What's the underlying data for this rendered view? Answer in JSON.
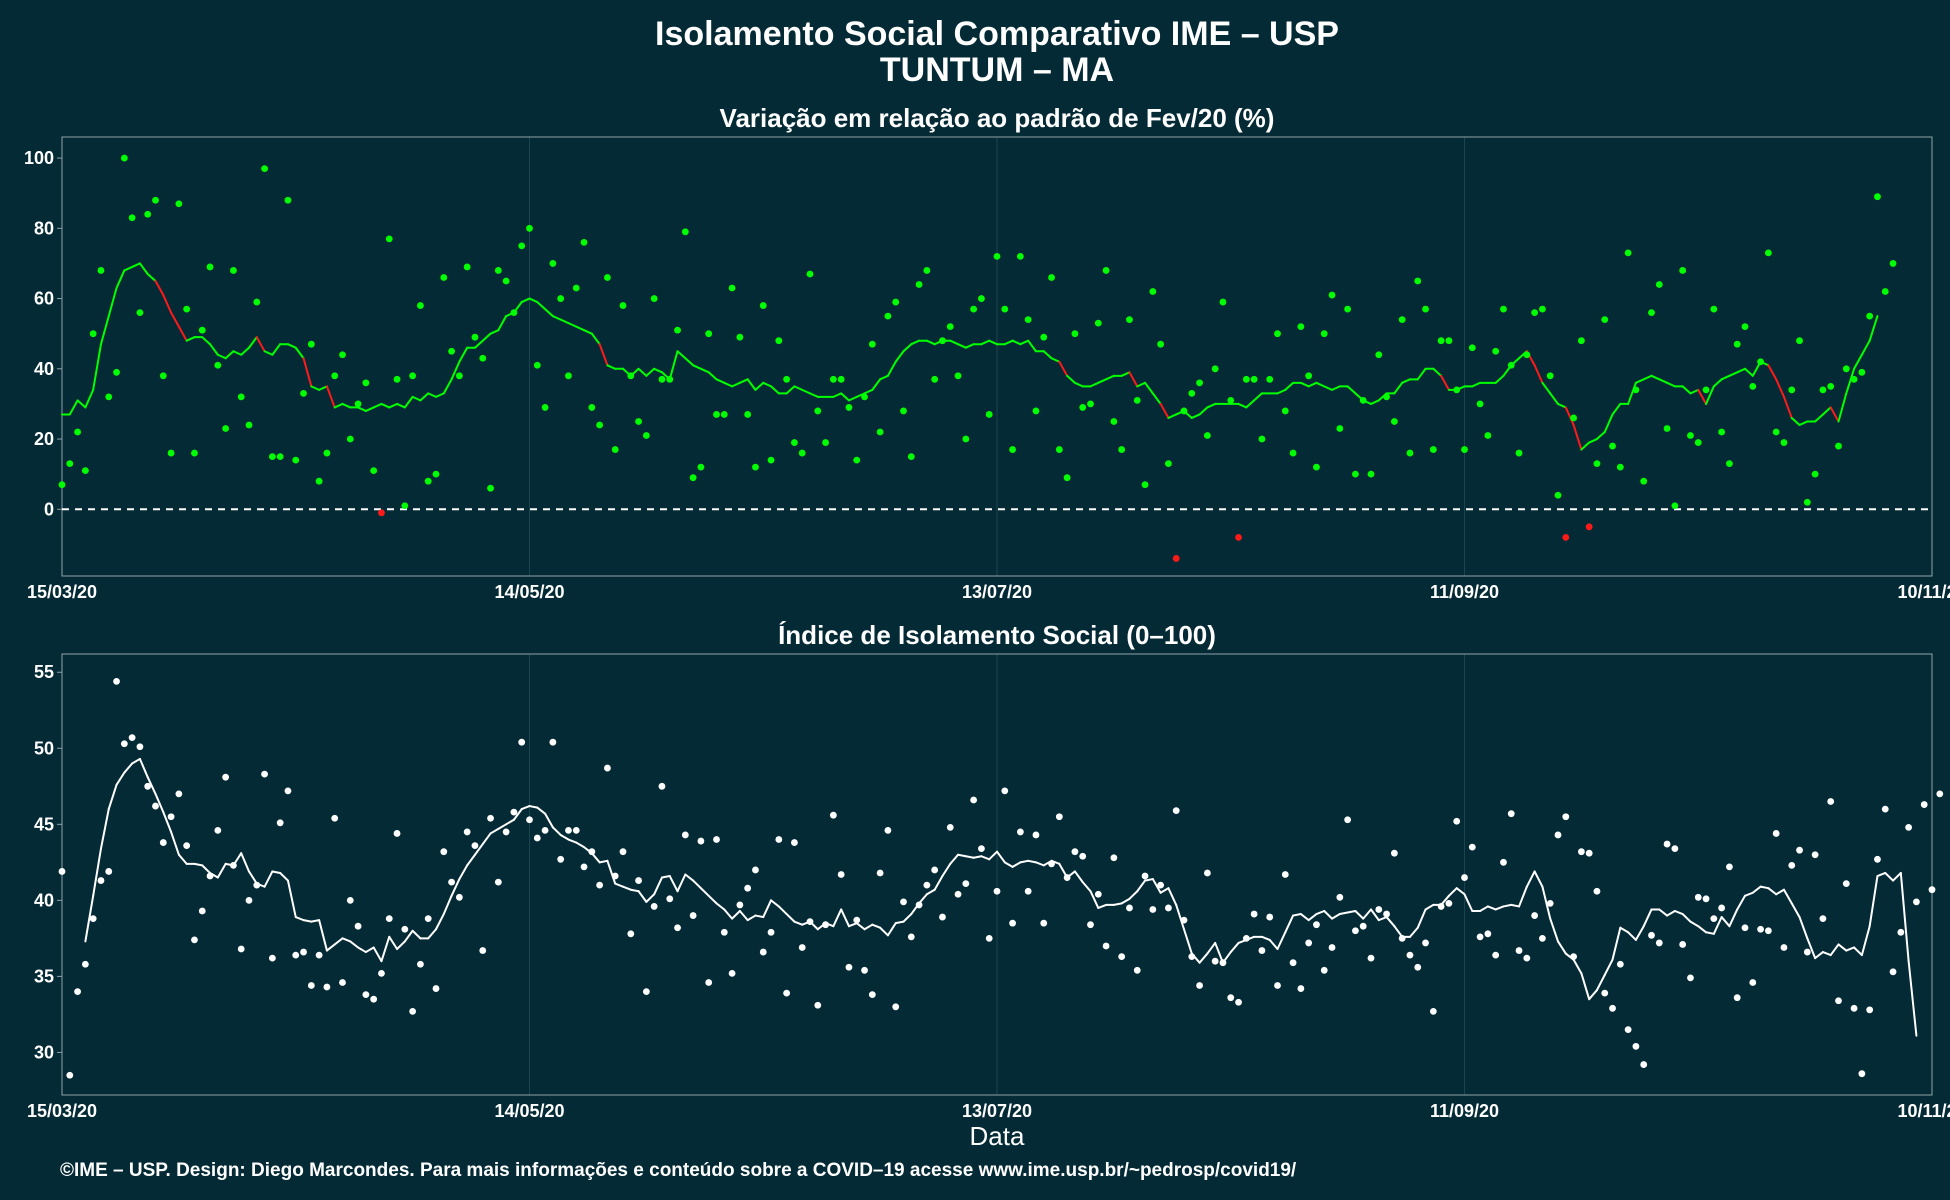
{
  "title": "Isolamento Social Comparativo IME – USP",
  "subtitle": "TUNTUM – MA",
  "caption": "©IME – USP. Design: Diego Marcondes. Para mais informações e conteúdo sobre a COVID–19 acesse www.ime.usp.br/~pedrosp/covid19/",
  "colors": {
    "background": "#042a35",
    "panel_border": "#8fa3a8",
    "grid": "#1c4450",
    "positive": "#00ff00",
    "negative": "#ff1a1a",
    "index_points": "#ffffff",
    "zero_line": "#ffffff"
  },
  "chart_data": [
    {
      "type": "scatter",
      "title": "Variação em relação ao padrão de Fev/20 (%)",
      "xlabel": "",
      "ylabel": "",
      "x_start": "15/03/20",
      "x_ticks": [
        "15/03/20",
        "14/05/20",
        "13/07/20",
        "11/09/20",
        "10/11/20"
      ],
      "x_tick_days": [
        0,
        60,
        120,
        180,
        240
      ],
      "xlim_days": [
        0,
        240
      ],
      "ylim": [
        -19,
        106
      ],
      "y_ticks": [
        0,
        20,
        40,
        60,
        80,
        100
      ],
      "reference_line": 0,
      "grid": true,
      "series": [
        {
          "kind": "daily_points",
          "values": [
            7,
            13,
            22,
            11,
            50,
            68,
            32,
            39,
            100,
            83,
            56,
            84,
            88,
            38,
            16,
            87,
            57,
            16,
            51,
            69,
            41,
            23,
            68,
            32,
            24,
            59,
            97,
            15,
            15,
            88,
            14,
            33,
            47,
            8,
            16,
            38,
            44,
            20,
            30,
            36,
            11,
            -1,
            77,
            37,
            1,
            38,
            58,
            8,
            10,
            66,
            45,
            38,
            69,
            49,
            43,
            6,
            68,
            65,
            56,
            75,
            80,
            41,
            29,
            70,
            60,
            38,
            63,
            76,
            29,
            24,
            66,
            17,
            58,
            38,
            25,
            21,
            60,
            37,
            37,
            51,
            79,
            9,
            12,
            50,
            27,
            27,
            63,
            49,
            27,
            12,
            58,
            14,
            48,
            37,
            19,
            16,
            67,
            28,
            19,
            37,
            37,
            29,
            14,
            32,
            47,
            22,
            55,
            59,
            28,
            15,
            64,
            68,
            37,
            48,
            52,
            38,
            20,
            57,
            60,
            27,
            72,
            57,
            17,
            72,
            54,
            28,
            49,
            66,
            17,
            9,
            50,
            29,
            30,
            53,
            68,
            25,
            17,
            54,
            31,
            7,
            62,
            47,
            13,
            -14,
            28,
            33,
            36,
            21,
            40,
            59,
            31,
            -8,
            37,
            37,
            20,
            37,
            50,
            28,
            16,
            52,
            38,
            12,
            50,
            61,
            23,
            57,
            10,
            31,
            10,
            44,
            32,
            25,
            54,
            16,
            65,
            57,
            17,
            48,
            48,
            34,
            17,
            46,
            30,
            21,
            45,
            57,
            41,
            16,
            44,
            56,
            57,
            38,
            4,
            -8,
            26,
            48,
            -5,
            13,
            54,
            18,
            12,
            73,
            34,
            8,
            56,
            64,
            23,
            1,
            68,
            21,
            19,
            34,
            57,
            22,
            13,
            47,
            52,
            35,
            42,
            73,
            22,
            19,
            34,
            48,
            2,
            10,
            34,
            35,
            18,
            40,
            37,
            39,
            55,
            89,
            62,
            70
          ]
        },
        {
          "kind": "moving_average",
          "values": [
            27,
            27,
            31,
            29,
            34,
            47,
            55,
            63,
            68,
            69,
            70,
            67,
            65,
            61,
            56,
            52,
            48,
            49,
            49,
            47,
            44,
            43,
            45,
            44,
            46,
            49,
            45,
            44,
            47,
            47,
            46,
            43,
            35,
            34,
            35,
            29,
            30,
            29,
            29,
            28,
            29,
            30,
            29,
            30,
            29,
            32,
            31,
            33,
            32,
            33,
            37,
            42,
            46,
            46,
            48,
            50,
            51,
            55,
            56,
            59,
            60,
            59,
            57,
            55,
            54,
            53,
            52,
            51,
            50,
            47,
            41,
            40,
            40,
            38,
            40,
            38,
            40,
            39,
            37,
            45,
            43,
            41,
            40,
            39,
            37,
            36,
            35,
            36,
            37,
            34,
            36,
            35,
            33,
            33,
            35,
            34,
            33,
            32,
            32,
            32,
            33,
            31,
            32,
            33,
            34,
            37,
            38,
            42,
            45,
            47,
            48,
            48,
            47,
            48,
            48,
            47,
            46,
            47,
            47,
            48,
            47,
            47,
            48,
            47,
            48,
            45,
            45,
            43,
            42,
            38,
            36,
            35,
            35,
            36,
            37,
            38,
            38,
            39,
            35,
            36,
            33,
            30,
            26,
            27,
            28,
            26,
            27,
            29,
            30,
            30,
            30,
            30,
            29,
            31,
            33,
            33,
            33,
            34,
            36,
            36,
            35,
            36,
            35,
            34,
            35,
            35,
            33,
            31,
            30,
            31,
            33,
            33,
            36,
            37,
            37,
            40,
            40,
            38,
            34,
            34,
            35,
            35,
            36,
            36,
            36,
            38,
            41,
            43,
            45,
            41,
            36,
            33,
            30,
            29,
            24,
            17,
            19,
            20,
            22,
            27,
            30,
            30,
            36,
            37,
            38,
            37,
            36,
            35,
            35,
            33,
            34,
            30,
            35,
            37,
            38,
            39,
            40,
            38,
            42,
            41,
            37,
            32,
            26,
            24,
            25,
            25,
            27,
            29,
            25,
            33,
            40,
            44,
            48,
            55
          ]
        }
      ]
    },
    {
      "type": "scatter",
      "title": "Índice de Isolamento Social (0–100)",
      "xlabel": "Data",
      "ylabel": "",
      "x_start": "15/03/20",
      "x_ticks": [
        "15/03/20",
        "14/05/20",
        "13/07/20",
        "11/09/20",
        "10/11/20"
      ],
      "x_tick_days": [
        0,
        60,
        120,
        180,
        240
      ],
      "xlim_days": [
        0,
        240
      ],
      "ylim": [
        27.2,
        56.2
      ],
      "y_ticks": [
        30,
        35,
        40,
        45,
        50,
        55
      ],
      "grid": true,
      "series": [
        {
          "kind": "daily_points",
          "values": [
            41.9,
            28.5,
            34.0,
            35.8,
            38.8,
            41.3,
            41.9,
            54.4,
            50.3,
            50.7,
            50.1,
            47.5,
            46.2,
            43.8,
            45.5,
            47.0,
            43.6,
            37.4,
            39.3,
            41.6,
            44.6,
            48.1,
            42.3,
            36.8,
            40.0,
            41.0,
            48.3,
            36.2,
            45.1,
            47.2,
            36.4,
            36.6,
            34.4,
            36.4,
            34.3,
            45.4,
            34.6,
            40.0,
            38.3,
            33.8,
            33.5,
            35.2,
            38.8,
            44.4,
            38.1,
            32.7,
            35.8,
            38.8,
            34.2,
            43.2,
            41.2,
            40.2,
            44.5,
            43.6,
            36.7,
            45.4,
            41.2,
            44.5,
            45.8,
            50.4,
            45.3,
            44.1,
            44.6,
            50.4,
            42.7,
            44.6,
            44.6,
            42.2,
            43.2,
            41.0,
            48.7,
            41.6,
            43.2,
            37.8,
            41.3,
            34.0,
            39.6,
            47.5,
            40.1,
            38.2,
            44.3,
            39.0,
            43.9,
            34.6,
            44.0,
            37.9,
            35.2,
            39.7,
            40.8,
            42.0,
            36.6,
            37.9,
            44.0,
            33.9,
            43.8,
            36.9,
            38.6,
            33.1,
            38.4,
            45.6,
            41.7,
            35.6,
            38.7,
            35.4,
            33.8,
            41.8,
            44.6,
            33.0,
            39.9,
            37.6,
            39.7,
            41.0,
            42.0,
            38.9,
            44.8,
            40.4,
            41.1,
            46.6,
            43.4,
            37.5,
            40.6,
            47.2,
            38.5,
            44.5,
            40.6,
            44.3,
            38.5,
            42.4,
            45.5,
            41.5,
            43.2,
            42.9,
            38.4,
            40.4,
            37.0,
            42.8,
            36.3,
            39.5,
            35.4,
            41.6,
            39.4,
            41.0,
            39.5,
            45.9,
            38.7,
            36.3,
            34.4,
            41.8,
            36.0,
            35.9,
            33.6,
            33.3,
            37.5,
            39.1,
            36.7,
            38.9,
            34.4,
            41.7,
            35.9,
            34.2,
            37.2,
            38.4,
            35.4,
            36.9,
            40.2,
            45.3,
            38.0,
            38.3,
            36.2,
            39.4,
            39.1,
            43.1,
            37.5,
            36.4,
            35.6,
            37.2,
            32.7,
            39.6,
            39.8,
            45.2,
            41.5,
            43.5,
            37.6,
            37.8,
            36.4,
            42.5,
            45.7,
            36.7,
            36.2,
            39.0,
            37.5,
            39.8,
            44.3,
            45.5,
            36.3,
            43.2,
            43.1,
            40.6,
            33.9,
            32.9,
            35.8,
            31.5,
            30.4,
            29.2,
            37.7,
            37.2,
            43.7,
            43.4,
            37.1,
            34.9,
            40.2,
            40.1,
            38.8,
            39.5,
            42.2,
            33.6,
            38.2,
            34.6,
            38.1,
            38.0,
            44.4,
            36.9,
            42.3,
            43.3,
            36.6,
            43.0,
            38.8,
            46.5,
            33.4,
            41.1,
            32.9,
            28.6,
            32.8,
            42.7,
            46.0,
            35.3,
            37.9,
            44.8,
            39.9,
            46.3,
            40.7,
            47.0
          ]
        },
        {
          "kind": "moving_average",
          "values": [
            null,
            null,
            null,
            37.3,
            40.3,
            43.4,
            46.0,
            47.6,
            48.4,
            49.0,
            49.3,
            48.1,
            47.0,
            45.8,
            44.5,
            43.0,
            42.4,
            42.4,
            42.3,
            41.8,
            41.5,
            42.4,
            42.3,
            43.1,
            41.9,
            41.1,
            40.9,
            41.9,
            41.8,
            41.3,
            38.9,
            38.7,
            38.6,
            38.7,
            36.7,
            37.1,
            37.5,
            37.3,
            36.9,
            36.6,
            36.9,
            36.0,
            37.6,
            36.8,
            37.3,
            38.0,
            37.5,
            37.5,
            38.1,
            39.1,
            40.3,
            41.4,
            42.3,
            43.0,
            43.7,
            44.4,
            44.7,
            45.0,
            45.3,
            46.0,
            46.2,
            46.1,
            45.7,
            44.8,
            44.3,
            44.0,
            43.8,
            43.5,
            43.1,
            42.5,
            42.6,
            41.1,
            40.9,
            40.7,
            40.6,
            39.9,
            40.4,
            41.5,
            41.6,
            40.6,
            41.7,
            41.3,
            40.8,
            40.3,
            39.8,
            39.4,
            38.8,
            39.3,
            38.7,
            39.0,
            38.9,
            40.0,
            39.6,
            39.1,
            38.6,
            38.4,
            38.6,
            38.1,
            38.5,
            38.3,
            39.4,
            38.3,
            38.5,
            38.1,
            38.4,
            38.2,
            37.7,
            38.5,
            38.6,
            39.1,
            39.8,
            40.4,
            40.7,
            41.6,
            42.4,
            43.0,
            42.9,
            42.8,
            42.9,
            42.7,
            43.2,
            42.5,
            42.2,
            42.5,
            42.6,
            42.5,
            42.3,
            42.6,
            42.4,
            41.5,
            41.9,
            41.2,
            40.6,
            39.5,
            39.7,
            39.7,
            39.8,
            40.1,
            40.6,
            41.3,
            41.4,
            40.5,
            40.8,
            39.7,
            38.1,
            36.5,
            35.9,
            36.5,
            37.2,
            35.9,
            36.6,
            37.2,
            37.4,
            37.6,
            37.6,
            37.4,
            36.8,
            37.9,
            39.0,
            39.1,
            38.7,
            39.1,
            39.3,
            38.8,
            39.1,
            39.2,
            39.3,
            38.8,
            39.4,
            38.7,
            38.9,
            38.3,
            37.6,
            37.6,
            38.2,
            39.4,
            39.7,
            39.7,
            40.3,
            40.8,
            40.4,
            39.3,
            39.3,
            39.6,
            39.4,
            39.6,
            39.7,
            39.6,
            40.9,
            41.9,
            40.9,
            38.8,
            37.3,
            36.5,
            36.1,
            35.2,
            33.5,
            34.1,
            35.1,
            36.1,
            38.2,
            37.9,
            37.4,
            38.3,
            39.4,
            39.4,
            39.0,
            39.3,
            39.1,
            38.6,
            38.3,
            37.9,
            37.8,
            38.9,
            38.3,
            39.4,
            40.3,
            40.5,
            40.9,
            40.8,
            40.4,
            40.7,
            39.8,
            38.9,
            37.5,
            36.2,
            36.6,
            36.4,
            37.1,
            36.7,
            36.9,
            36.4,
            38.3,
            41.6,
            41.8,
            41.3,
            41.8,
            36.0,
            31.1
          ]
        }
      ]
    }
  ]
}
